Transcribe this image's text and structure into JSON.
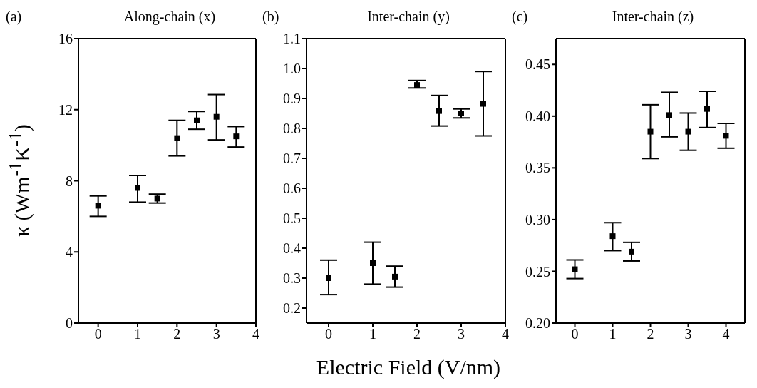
{
  "chart_data": [
    {
      "type": "scatter",
      "title": "Along-chain (x)",
      "annotations": [
        "(a)"
      ],
      "ylabel": "κ (Wm$^{-1}$K$^{-1}$)",
      "marker": "square",
      "color": "#000000",
      "x": [
        0,
        1,
        1.5,
        2,
        2.5,
        3,
        3.5
      ],
      "values": [
        6.6,
        7.6,
        7.0,
        10.4,
        11.4,
        11.6,
        10.5
      ],
      "errors": [
        [
          6.0,
          7.15
        ],
        [
          6.8,
          8.3
        ],
        [
          6.75,
          7.25
        ],
        [
          9.4,
          11.4
        ],
        [
          10.9,
          11.9
        ],
        [
          10.3,
          12.85
        ],
        [
          9.9,
          11.05
        ]
      ],
      "xlim": [
        -0.5,
        4
      ],
      "xticks": [
        0,
        1,
        2,
        3,
        4
      ],
      "ylim": [
        0,
        16
      ],
      "yticks": [
        0,
        4,
        8,
        12,
        16
      ]
    },
    {
      "type": "scatter",
      "title": "Inter-chain (y)",
      "annotations": [
        "(b)"
      ],
      "xlabel": "Electric Field (V/nm)",
      "marker": "square",
      "color": "#000000",
      "x": [
        0,
        1,
        1.5,
        2,
        2.5,
        3,
        3.5
      ],
      "values": [
        0.3,
        0.35,
        0.305,
        0.945,
        0.858,
        0.85,
        0.882
      ],
      "errors": [
        [
          0.245,
          0.36
        ],
        [
          0.28,
          0.42
        ],
        [
          0.27,
          0.34
        ],
        [
          0.935,
          0.96
        ],
        [
          0.808,
          0.91
        ],
        [
          0.835,
          0.865
        ],
        [
          0.775,
          0.99
        ]
      ],
      "xlim": [
        -0.5,
        4
      ],
      "xticks": [
        0,
        1,
        2,
        3,
        4
      ],
      "ylim": [
        0.15,
        1.1
      ],
      "yticks": [
        0.2,
        0.3,
        0.4,
        0.5,
        0.6,
        0.7,
        0.8,
        0.9,
        {
          "value": 1.0,
          "label": "1.0"
        },
        1.1
      ]
    },
    {
      "type": "scatter",
      "title": "Inter-chain (z)",
      "annotations": [
        "(c)"
      ],
      "marker": "square",
      "color": "#000000",
      "x": [
        0,
        1,
        1.5,
        2,
        2.5,
        3,
        3.5,
        4
      ],
      "values": [
        0.252,
        0.284,
        0.269,
        0.385,
        0.401,
        0.385,
        0.407,
        0.381
      ],
      "errors": [
        [
          0.243,
          0.261
        ],
        [
          0.27,
          0.297
        ],
        [
          0.26,
          0.278
        ],
        [
          0.359,
          0.411
        ],
        [
          0.38,
          0.423
        ],
        [
          0.367,
          0.403
        ],
        [
          0.389,
          0.424
        ],
        [
          0.369,
          0.393
        ]
      ],
      "xlim": [
        -0.5,
        4.5
      ],
      "xticks": [
        0,
        1,
        2,
        3,
        4
      ],
      "ylim": [
        0.2,
        0.475
      ],
      "yticks": [
        {
          "value": 0.2,
          "label": "0.20"
        },
        0.25,
        {
          "value": 0.3,
          "label": "0.30"
        },
        0.35,
        {
          "value": 0.4,
          "label": "0.40"
        },
        0.45
      ]
    }
  ]
}
